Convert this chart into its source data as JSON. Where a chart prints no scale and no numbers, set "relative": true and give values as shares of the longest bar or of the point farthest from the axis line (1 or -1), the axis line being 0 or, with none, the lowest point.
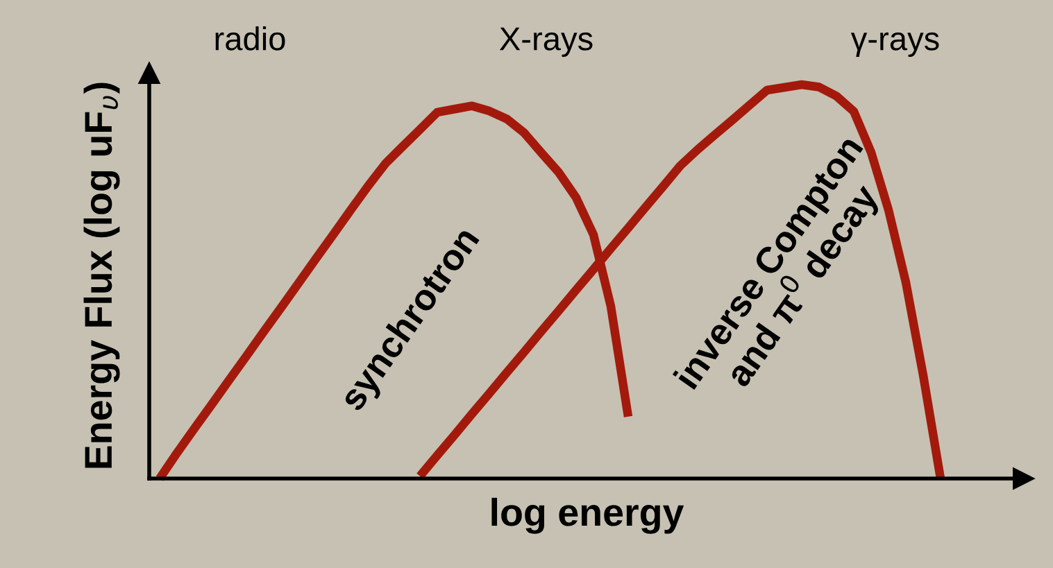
{
  "chart_data": {
    "type": "line",
    "relative": true,
    "xlabel": "log energy",
    "ylabel": "Energy Flux (log uF$_{υ}$)",
    "categories": [
      null,
      null,
      null,
      null,
      null,
      null,
      null,
      null,
      null,
      null,
      null,
      null,
      null,
      null,
      null,
      null,
      null,
      null,
      null,
      null,
      null,
      null,
      null,
      null,
      null,
      null,
      null,
      null,
      null,
      null,
      null,
      null,
      null,
      null,
      null,
      null,
      null,
      null,
      null,
      null,
      null,
      null,
      null,
      null,
      null,
      null
    ],
    "series": [
      {
        "name": "synchrotron",
        "color": "#a31a0c",
        "values": [
          0,
          0.065,
          0.127,
          0.188,
          0.25,
          0.311,
          0.373,
          0.434,
          0.496,
          0.558,
          0.619,
          0.681,
          0.742,
          0.799,
          0.843,
          0.886,
          0.93,
          0.938,
          0.946,
          0.933,
          0.913,
          0.878,
          0.827,
          0.777,
          0.713,
          0.619,
          0.437,
          0.157,
          null,
          null,
          null,
          null,
          null,
          null,
          null,
          null,
          null,
          null,
          null,
          null,
          null,
          null,
          null,
          null,
          null,
          null
        ]
      },
      {
        "name": "inverse Compton\nand π$^{0}$ decay",
        "color": "#a31a0c",
        "values": [
          null,
          null,
          null,
          null,
          null,
          null,
          null,
          null,
          null,
          null,
          null,
          null,
          null,
          null,
          null,
          0.006,
          0.059,
          0.111,
          0.164,
          0.216,
          0.269,
          0.321,
          0.374,
          0.426,
          0.479,
          0.531,
          0.584,
          0.636,
          0.689,
          0.741,
          0.794,
          0.835,
          0.873,
          0.91,
          0.948,
          0.986,
          0.993,
          1,
          0.994,
          0.971,
          0.932,
          0.828,
          0.682,
          0.498,
          0.262,
          0
        ]
      }
    ],
    "annotations": [
      "radio",
      "X-rays",
      "γ-rays"
    ],
    "marker": "none",
    "line_style": "solid"
  }
}
